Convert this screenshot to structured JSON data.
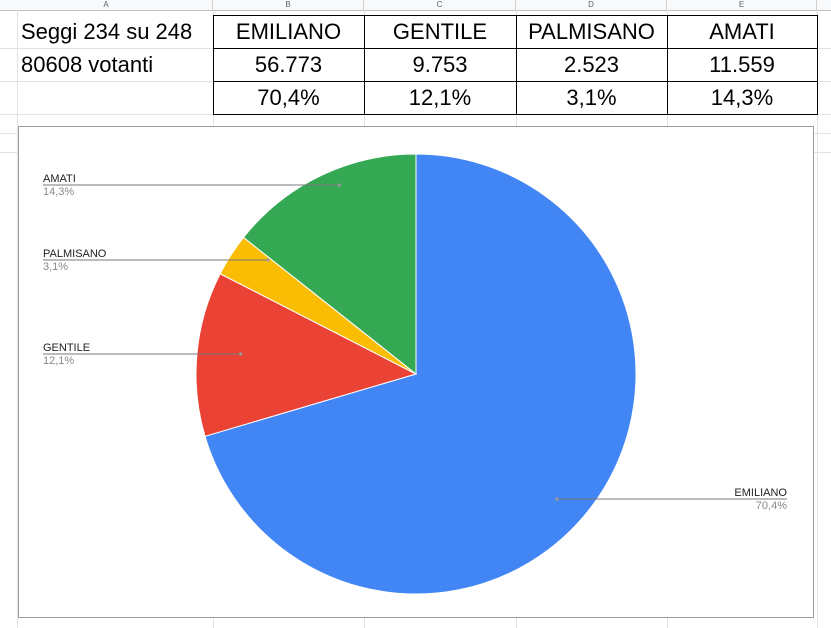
{
  "columns": [
    "A",
    "B",
    "C",
    "D",
    "E"
  ],
  "rows": [
    [
      "Seggi 234 su 248",
      "EMILIANO",
      "GENTILE",
      "PALMISANO",
      "AMATI"
    ],
    [
      "80608 votanti",
      "56.773",
      "9.753",
      "2.523",
      "11.559"
    ],
    [
      "",
      "70,4%",
      "12,1%",
      "3,1%",
      "14,3%"
    ]
  ],
  "chart_data": {
    "type": "pie",
    "slices": [
      {
        "label": "EMILIANO",
        "value": 56773,
        "pct_label": "70,4%",
        "color": "#4285f4"
      },
      {
        "label": "GENTILE",
        "value": 9753,
        "pct_label": "12,1%",
        "color": "#ea4335"
      },
      {
        "label": "PALMISANO",
        "value": 2523,
        "pct_label": "3,1%",
        "color": "#fbbc04"
      },
      {
        "label": "AMATI",
        "value": 11559,
        "pct_label": "14,3%",
        "color": "#34a853"
      }
    ],
    "legend": "none",
    "labels_position": "outside with leader lines"
  }
}
